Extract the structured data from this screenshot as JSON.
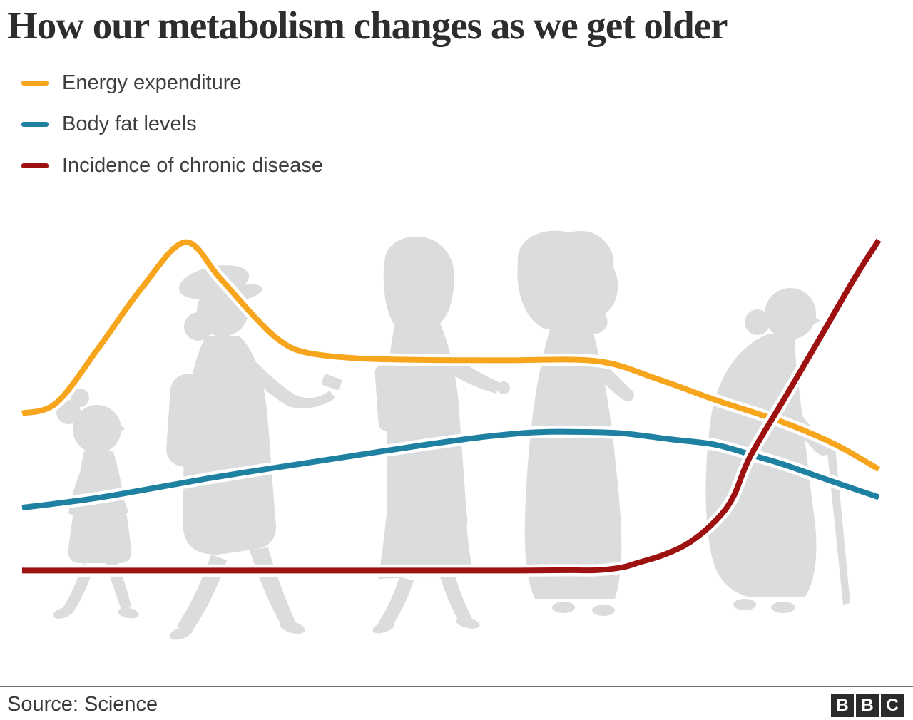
{
  "page": {
    "title": "How our metabolism changes as we get older",
    "background_color": "#ffffff"
  },
  "legend": {
    "items": [
      {
        "label": "Energy expenditure",
        "color": "#F7A51C"
      },
      {
        "label": "Body fat levels",
        "color": "#1F81A1"
      },
      {
        "label": "Incidence of chronic disease",
        "color": "#9E1111"
      }
    ]
  },
  "footer": {
    "source": "Source: Science",
    "divider_color": "#6e6e6e",
    "logo_letters": [
      "B",
      "B",
      "C"
    ]
  },
  "chart_data": {
    "type": "line",
    "title": "How our metabolism changes as we get older",
    "xlabel": "",
    "ylabel": "",
    "axes_visible": false,
    "grid": false,
    "legend_position": "top-left",
    "x_unit": "percent of lifespan (childhood to old age)",
    "ylim": [
      0,
      100
    ],
    "series": [
      {
        "name": "Energy expenditure",
        "color": "#F7A51C",
        "x_pct": [
          0,
          4,
          9,
          14,
          19,
          23,
          27,
          30,
          33,
          39,
          47,
          56,
          67,
          74,
          81,
          89,
          95,
          100
        ],
        "values": [
          49,
          52,
          68,
          85,
          98,
          88,
          77,
          70,
          66.5,
          64.8,
          64.3,
          64.2,
          64,
          59,
          52.8,
          46.3,
          40,
          33
        ]
      },
      {
        "name": "Body fat levels",
        "color": "#1F81A1",
        "x_pct": [
          0,
          8,
          14,
          22,
          31,
          39,
          47,
          54,
          60,
          65,
          70,
          76,
          81,
          86,
          89,
          94,
          100
        ],
        "values": [
          22,
          24.5,
          27,
          30.5,
          34,
          37,
          40,
          42.3,
          43.6,
          43.7,
          43.3,
          41.5,
          40,
          36.5,
          34.3,
          30,
          25
        ]
      },
      {
        "name": "Incidence of chronic disease",
        "color": "#9E1111",
        "x_pct": [
          0,
          15,
          30,
          45,
          58,
          64,
          67,
          70,
          72,
          75,
          78,
          81,
          83,
          85,
          89,
          93,
          97,
          100
        ],
        "values": [
          4,
          4,
          4,
          4,
          4,
          4.1,
          4.1,
          4.9,
          6.3,
          8.6,
          12.2,
          18.4,
          25,
          36.7,
          53.3,
          70,
          87,
          98.6
        ]
      }
    ],
    "annotations": [],
    "silhouette_color": "#DBDCDD",
    "figures": [
      "child",
      "teenager-looking-at-phone",
      "young-woman-with-bag",
      "middle-aged-woman",
      "elderly-woman-with-cane"
    ]
  }
}
